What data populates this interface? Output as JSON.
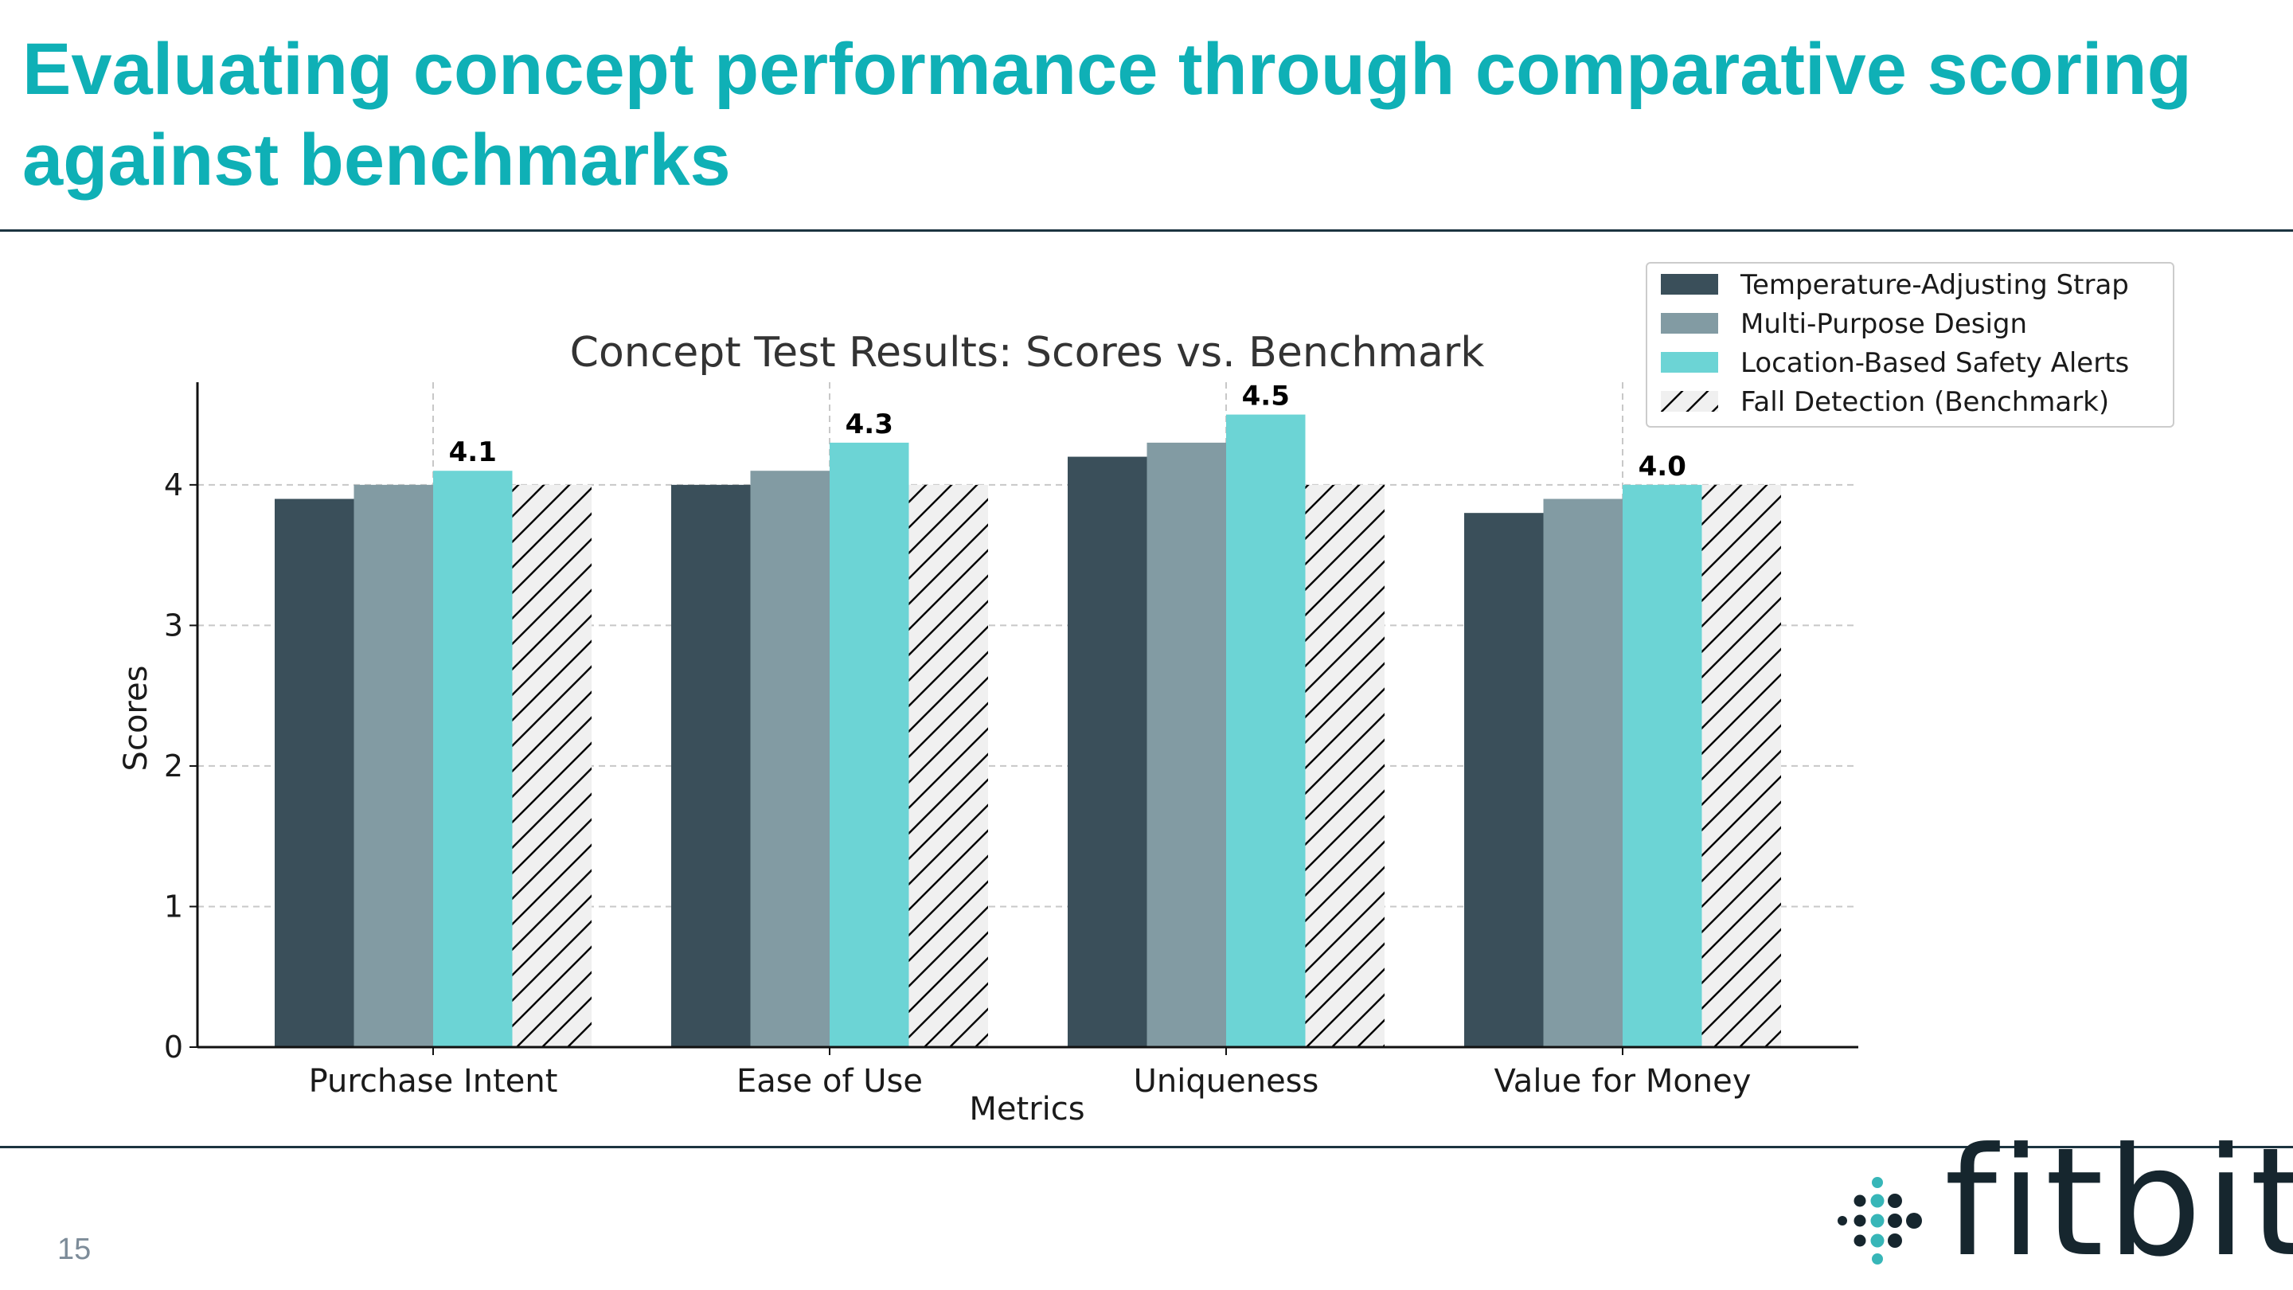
{
  "slide": {
    "title": "Evaluating concept performance through comparative scoring against benchmarks",
    "page_number": "15",
    "logo_text": "fitbit"
  },
  "colors": {
    "title": "#0fb0b6",
    "rule": "#1c3440",
    "series": [
      "#3a4f5a",
      "#829ba3",
      "#6cd4d5",
      "#f0f0f0"
    ]
  },
  "icons": {
    "logo": "fitbit-dots-icon"
  },
  "chart_data": {
    "type": "bar",
    "title": "Concept Test Results: Scores vs. Benchmark",
    "xlabel": "Metrics",
    "ylabel": "Scores",
    "categories": [
      "Purchase Intent",
      "Ease of Use",
      "Uniqueness",
      "Value for Money"
    ],
    "series": [
      {
        "name": "Temperature-Adjusting Strap",
        "values": [
          3.9,
          4.0,
          4.2,
          3.8
        ],
        "color": "#3a4f5a",
        "hatch": false
      },
      {
        "name": "Multi-Purpose Design",
        "values": [
          4.0,
          4.1,
          4.3,
          3.9
        ],
        "color": "#829ba3",
        "hatch": false
      },
      {
        "name": "Location-Based Safety Alerts",
        "values": [
          4.1,
          4.3,
          4.5,
          4.0
        ],
        "color": "#6cd4d5",
        "hatch": false
      },
      {
        "name": "Fall Detection (Benchmark)",
        "values": [
          4.0,
          4.0,
          4.0,
          4.0
        ],
        "color": "#f0f0f0",
        "hatch": true
      }
    ],
    "data_labels": {
      "series": "Location-Based Safety Alerts",
      "values": [
        "4.1",
        "4.3",
        "4.5",
        "4.0"
      ]
    },
    "yticks": [
      0,
      1,
      2,
      3,
      4
    ],
    "ylim": [
      0,
      4.73
    ],
    "grid": true,
    "legend_position": "top-right"
  }
}
